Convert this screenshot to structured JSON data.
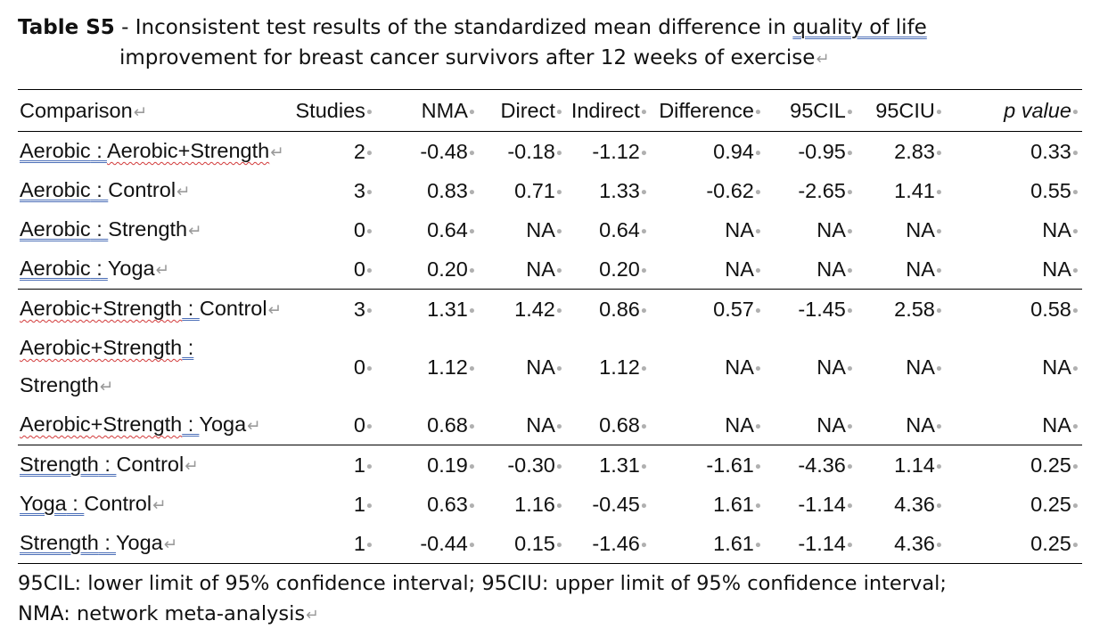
{
  "caption": {
    "label": "Table S5",
    "separator": " - ",
    "line1_before": "Inconsistent test results of the standardized mean difference in ",
    "line1_underlined": "quality of life",
    "line2": "improvement for breast cancer survivors after 12 weeks of exercise"
  },
  "table": {
    "headers": [
      "Comparison",
      "Studies",
      "NMA",
      "Direct",
      "Indirect",
      "Difference",
      "95CIL",
      "95CIU",
      "p value"
    ],
    "rows": [
      {
        "a": "Aerobic",
        "b": "Aerobic+Strength",
        "studies": "2",
        "nma": "-0.48",
        "direct": "-0.18",
        "indirect": "-1.12",
        "difference": "0.94",
        "cil": "-0.95",
        "ciu": "2.83",
        "p": "0.33"
      },
      {
        "a": "Aerobic",
        "b": "Control",
        "studies": "3",
        "nma": "0.83",
        "direct": "0.71",
        "indirect": "1.33",
        "difference": "-0.62",
        "cil": "-2.65",
        "ciu": "1.41",
        "p": "0.55"
      },
      {
        "a": "Aerobic",
        "b": "Strength",
        "studies": "0",
        "nma": "0.64",
        "direct": "NA",
        "indirect": "0.64",
        "difference": "NA",
        "cil": "NA",
        "ciu": "NA",
        "p": "NA"
      },
      {
        "a": "Aerobic",
        "b": "Yoga",
        "studies": "0",
        "nma": "0.20",
        "direct": "NA",
        "indirect": "0.20",
        "difference": "NA",
        "cil": "NA",
        "ciu": "NA",
        "p": "NA"
      },
      {
        "a": "Aerobic+Strength",
        "b": "Control",
        "studies": "3",
        "nma": "1.31",
        "direct": "1.42",
        "indirect": "0.86",
        "difference": "0.57",
        "cil": "-1.45",
        "ciu": "2.58",
        "p": "0.58"
      },
      {
        "a": "Aerobic+Strength",
        "b": "Strength",
        "studies": "0",
        "nma": "1.12",
        "direct": "NA",
        "indirect": "1.12",
        "difference": "NA",
        "cil": "NA",
        "ciu": "NA",
        "p": "NA"
      },
      {
        "a": "Aerobic+Strength",
        "b": "Yoga",
        "studies": "0",
        "nma": "0.68",
        "direct": "NA",
        "indirect": "0.68",
        "difference": "NA",
        "cil": "NA",
        "ciu": "NA",
        "p": "NA"
      },
      {
        "a": "Strength",
        "b": "Control",
        "studies": "1",
        "nma": "0.19",
        "direct": "-0.30",
        "indirect": "1.31",
        "difference": "-1.61",
        "cil": "-4.36",
        "ciu": "1.14",
        "p": "0.25"
      },
      {
        "a": "Yoga",
        "b": "Control",
        "studies": "1",
        "nma": "0.63",
        "direct": "1.16",
        "indirect": "-0.45",
        "difference": "1.61",
        "cil": "-1.14",
        "ciu": "4.36",
        "p": "0.25"
      },
      {
        "a": "Strength",
        "b": "Yoga",
        "studies": "1",
        "nma": "-0.44",
        "direct": "0.15",
        "indirect": "-1.46",
        "difference": "1.61",
        "cil": "-1.14",
        "ciu": "4.36",
        "p": "0.25"
      }
    ]
  },
  "footnote": {
    "line1": "95CIL: lower limit of 95% confidence interval; 95CIU: upper limit of 95% confidence interval;",
    "line2": "NMA: network meta-analysis"
  }
}
